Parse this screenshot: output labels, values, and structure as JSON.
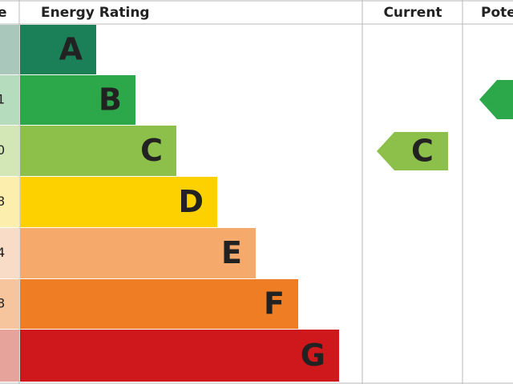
{
  "header": {
    "score": "e",
    "rating": "Energy Rating",
    "current": "Current",
    "potential": "Pote"
  },
  "bands": [
    {
      "letter": "A",
      "color": "#1b7f57",
      "tint": "#a9c7bb"
    },
    {
      "letter": "B",
      "score": "1",
      "color": "#2ca84b",
      "tint": "#b5dcbc"
    },
    {
      "letter": "C",
      "score": "0",
      "color": "#8dc04b",
      "tint": "#d3e6b6"
    },
    {
      "letter": "D",
      "score": "8",
      "color": "#fdd000",
      "tint": "#fcefae"
    },
    {
      "letter": "E",
      "score": "4",
      "color": "#f5a96b",
      "tint": "#f9dcc7"
    },
    {
      "letter": "F",
      "score": "8",
      "color": "#ee7d23",
      "tint": "#f6c49d"
    },
    {
      "letter": "G",
      "color": "#cf181c",
      "tint": "#e6a39b"
    }
  ],
  "current": {
    "letter": "C",
    "color": "#8dc04b"
  },
  "potential": {
    "color": "#2ca84b"
  }
}
